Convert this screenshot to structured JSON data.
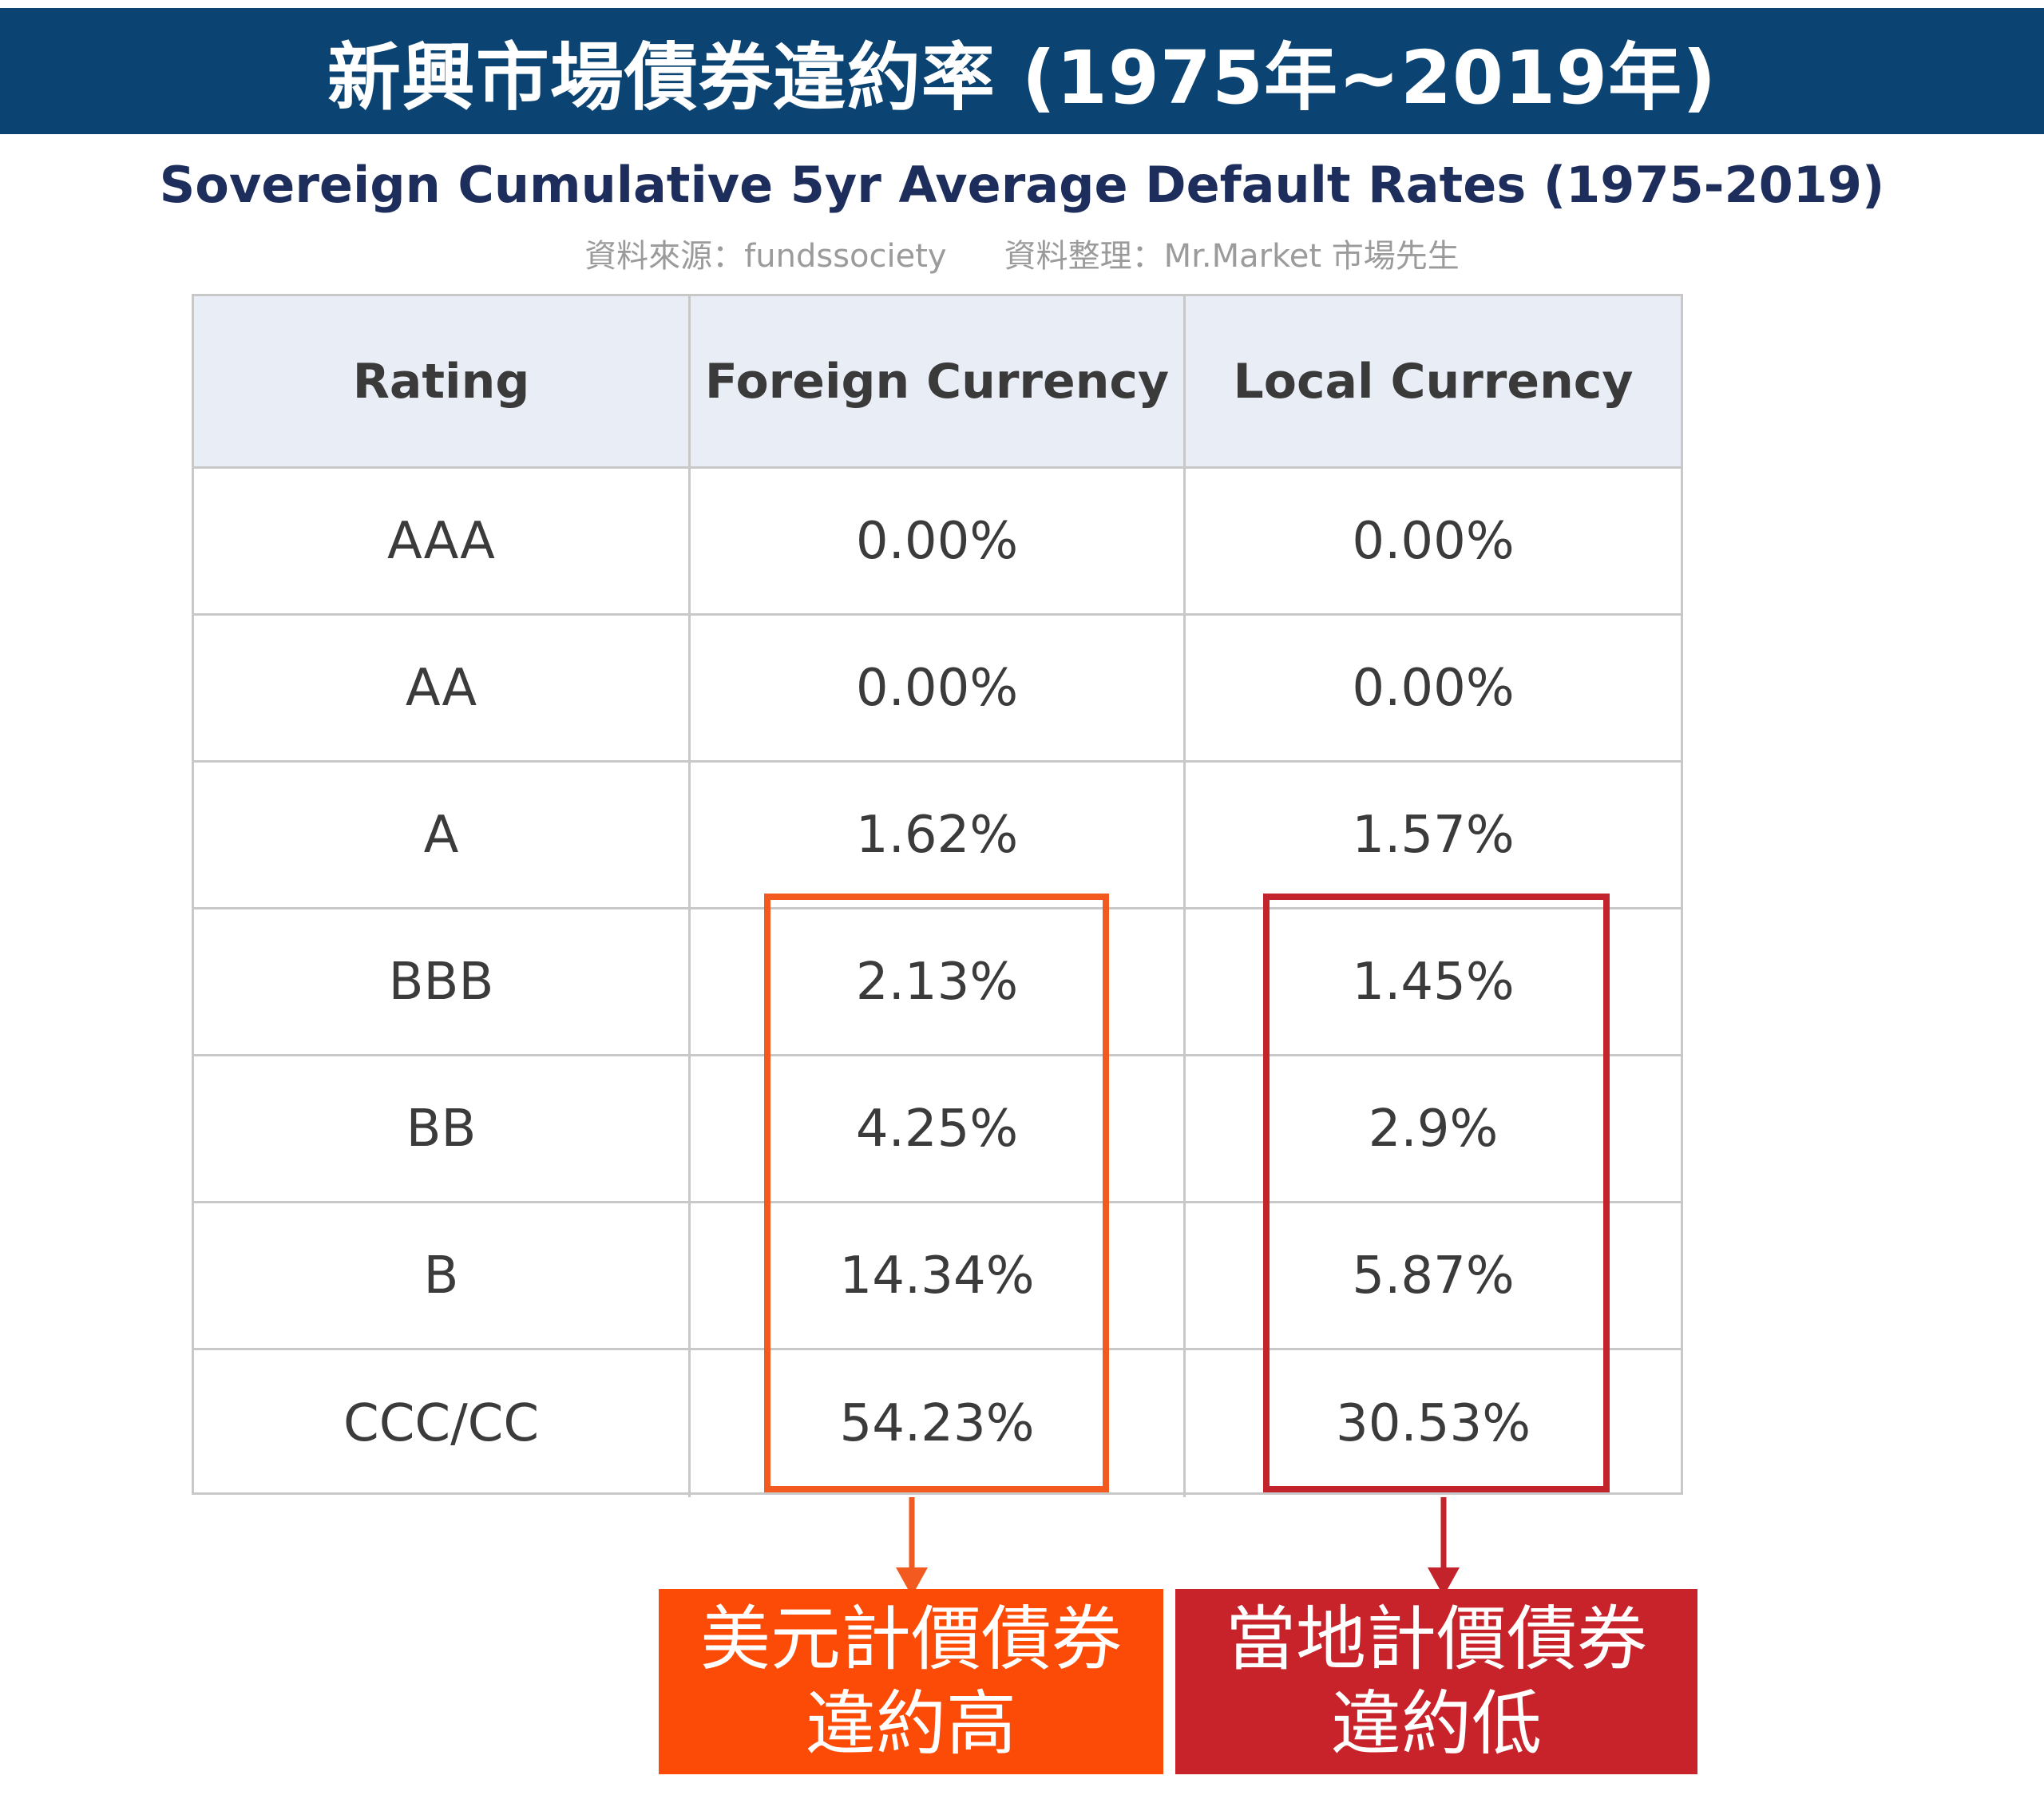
{
  "banner": {
    "title": "新興市場債券違約率 (1975年~2019年)"
  },
  "chart_data": {
    "type": "table",
    "title": "Sovereign Cumulative 5yr Average Default Rates (1975-2019)",
    "source": "資料來源：fundssociety",
    "compiled_by": "資料整理：Mr.Market 市場先生",
    "columns": [
      "Rating",
      "Foreign Currency",
      "Local Currency"
    ],
    "rows": [
      {
        "rating": "AAA",
        "foreign": "0.00%",
        "local": "0.00%"
      },
      {
        "rating": "AA",
        "foreign": "0.00%",
        "local": "0.00%"
      },
      {
        "rating": "A",
        "foreign": "1.62%",
        "local": "1.57%"
      },
      {
        "rating": "BBB",
        "foreign": "2.13%",
        "local": "1.45%"
      },
      {
        "rating": "BB",
        "foreign": "4.25%",
        "local": "2.9%"
      },
      {
        "rating": "B",
        "foreign": "14.34%",
        "local": "5.87%"
      },
      {
        "rating": "CCC/CC",
        "foreign": "54.23%",
        "local": "30.53%"
      }
    ],
    "highlights": [
      "BBB",
      "BB",
      "B",
      "CCC/CC"
    ]
  },
  "callouts": {
    "foreign": {
      "line1": "美元計價債券",
      "line2": "違約高"
    },
    "local": {
      "line1": "當地計價債券",
      "line2": "違約低"
    }
  },
  "colors": {
    "banner": "#0b4473",
    "foreign_accent": "#fb4b06",
    "local_accent": "#c8232a",
    "header_bg": "#e9edf6"
  }
}
